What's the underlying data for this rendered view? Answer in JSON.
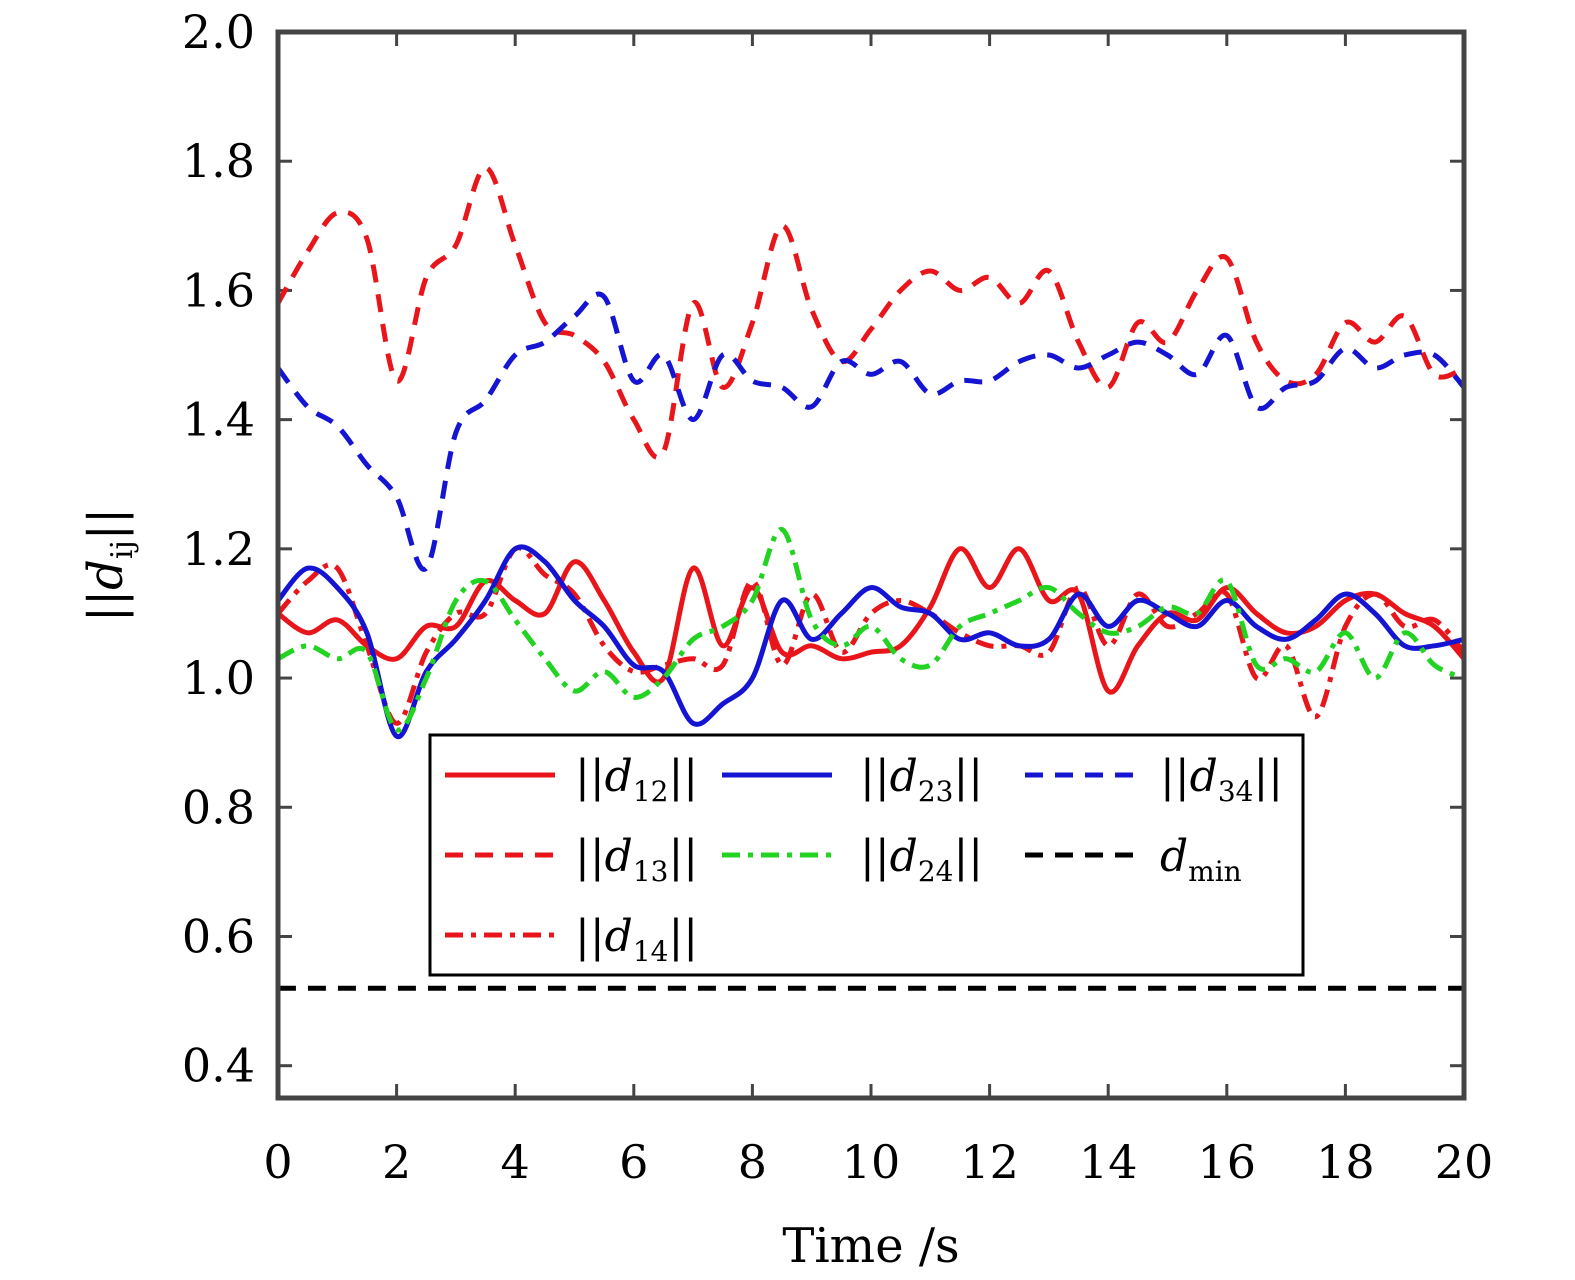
{
  "chart_data": {
    "type": "line",
    "xlabel": "Time /s",
    "ylabel": "||d_ij||",
    "xlim": [
      0,
      20
    ],
    "ylim": [
      0.35,
      2.0
    ],
    "xticks": [
      "0",
      "2",
      "4",
      "6",
      "8",
      "10",
      "12",
      "14",
      "16",
      "18",
      "20"
    ],
    "yticks": [
      "0.4",
      "0.6",
      "0.8",
      "1.0",
      "1.2",
      "1.4",
      "1.6",
      "1.8",
      "2.0"
    ],
    "legend_position": "lower-center",
    "series": [
      {
        "name": "||d12||",
        "label_main": "||d",
        "label_sub": "12",
        "label_tail": "||",
        "color": "#e8151b",
        "style": "solid",
        "x": [
          0,
          0.5,
          1,
          1.5,
          2,
          2.5,
          3,
          3.5,
          4,
          4.5,
          5,
          5.5,
          6,
          6.5,
          7,
          7.5,
          8,
          8.5,
          9,
          9.5,
          10,
          10.5,
          11,
          11.5,
          12,
          12.5,
          13,
          13.5,
          14,
          14.5,
          15,
          15.5,
          16,
          16.5,
          17,
          17.5,
          18,
          18.5,
          19,
          19.5,
          20
        ],
        "y": [
          1.1,
          1.07,
          1.09,
          1.05,
          1.03,
          1.08,
          1.08,
          1.15,
          1.12,
          1.1,
          1.18,
          1.12,
          1.04,
          1.0,
          1.17,
          1.05,
          1.14,
          1.04,
          1.05,
          1.03,
          1.04,
          1.05,
          1.11,
          1.2,
          1.14,
          1.2,
          1.12,
          1.13,
          0.98,
          1.05,
          1.1,
          1.09,
          1.14,
          1.1,
          1.07,
          1.08,
          1.12,
          1.13,
          1.1,
          1.08,
          1.03
        ]
      },
      {
        "name": "||d13||",
        "label_main": "||d",
        "label_sub": "13",
        "label_tail": "||",
        "color": "#e8151b",
        "style": "dashed",
        "x": [
          0,
          0.5,
          1,
          1.5,
          2,
          2.5,
          3,
          3.5,
          4,
          4.5,
          5,
          5.5,
          6,
          6.5,
          7,
          7.5,
          8,
          8.5,
          9,
          9.5,
          10,
          10.5,
          11,
          11.5,
          12,
          12.5,
          13,
          13.5,
          14,
          14.5,
          15,
          15.5,
          16,
          16.5,
          17,
          17.5,
          18,
          18.5,
          19,
          19.5,
          20
        ],
        "y": [
          1.58,
          1.66,
          1.72,
          1.68,
          1.46,
          1.62,
          1.67,
          1.79,
          1.67,
          1.55,
          1.53,
          1.49,
          1.4,
          1.35,
          1.58,
          1.45,
          1.55,
          1.7,
          1.57,
          1.49,
          1.54,
          1.6,
          1.63,
          1.6,
          1.62,
          1.58,
          1.63,
          1.52,
          1.45,
          1.55,
          1.52,
          1.6,
          1.65,
          1.52,
          1.46,
          1.47,
          1.55,
          1.52,
          1.56,
          1.47,
          1.48
        ]
      },
      {
        "name": "||d14||",
        "label_main": "||d",
        "label_sub": "14",
        "label_tail": "||",
        "color": "#e8151b",
        "style": "dashdot",
        "x": [
          0,
          0.5,
          1,
          1.5,
          2,
          2.5,
          3,
          3.5,
          4,
          4.5,
          5,
          5.5,
          6,
          6.5,
          7,
          7.5,
          8,
          8.5,
          9,
          9.5,
          10,
          10.5,
          11,
          11.5,
          12,
          12.5,
          13,
          13.5,
          14,
          14.5,
          15,
          15.5,
          16,
          16.5,
          17,
          17.5,
          18,
          18.5,
          19,
          19.5,
          20
        ],
        "y": [
          1.1,
          1.15,
          1.17,
          1.05,
          0.93,
          1.04,
          1.1,
          1.1,
          1.2,
          1.16,
          1.13,
          1.05,
          1.01,
          1.02,
          1.03,
          1.02,
          1.15,
          1.02,
          1.13,
          1.04,
          1.1,
          1.12,
          1.1,
          1.07,
          1.05,
          1.05,
          1.04,
          1.14,
          1.05,
          1.13,
          1.08,
          1.1,
          1.13,
          1.0,
          1.05,
          0.94,
          1.08,
          1.13,
          1.08,
          1.09,
          1.04
        ]
      },
      {
        "name": "||d23||",
        "label_main": "||d",
        "label_sub": "23",
        "label_tail": "||",
        "color": "#1414d2",
        "style": "solid",
        "x": [
          0,
          0.5,
          1,
          1.5,
          2,
          2.5,
          3,
          3.5,
          4,
          4.5,
          5,
          5.5,
          6,
          6.5,
          7,
          7.5,
          8,
          8.5,
          9,
          9.5,
          10,
          10.5,
          11,
          11.5,
          12,
          12.5,
          13,
          13.5,
          14,
          14.5,
          15,
          15.5,
          16,
          16.5,
          17,
          17.5,
          18,
          18.5,
          19,
          19.5,
          20
        ],
        "y": [
          1.12,
          1.17,
          1.14,
          1.07,
          0.91,
          1.01,
          1.06,
          1.12,
          1.2,
          1.18,
          1.12,
          1.08,
          1.02,
          1.01,
          0.93,
          0.96,
          1.0,
          1.12,
          1.06,
          1.1,
          1.14,
          1.11,
          1.1,
          1.06,
          1.07,
          1.05,
          1.06,
          1.13,
          1.08,
          1.12,
          1.1,
          1.08,
          1.12,
          1.08,
          1.06,
          1.09,
          1.13,
          1.1,
          1.05,
          1.05,
          1.06
        ]
      },
      {
        "name": "||d24||",
        "label_main": "||d",
        "label_sub": "24",
        "label_tail": "||",
        "color": "#22d322",
        "style": "dashdot",
        "x": [
          0,
          0.5,
          1,
          1.5,
          2,
          2.5,
          3,
          3.5,
          4,
          4.5,
          5,
          5.5,
          6,
          6.5,
          7,
          7.5,
          8,
          8.5,
          9,
          9.5,
          10,
          10.5,
          11,
          11.5,
          12,
          12.5,
          13,
          13.5,
          14,
          14.5,
          15,
          15.5,
          16,
          16.5,
          17,
          17.5,
          18,
          18.5,
          19,
          19.5,
          20
        ],
        "y": [
          1.03,
          1.05,
          1.03,
          1.04,
          0.92,
          1.0,
          1.12,
          1.15,
          1.09,
          1.03,
          0.98,
          1.01,
          0.97,
          1.0,
          1.06,
          1.08,
          1.12,
          1.23,
          1.09,
          1.05,
          1.08,
          1.03,
          1.02,
          1.08,
          1.1,
          1.12,
          1.14,
          1.1,
          1.07,
          1.08,
          1.11,
          1.1,
          1.15,
          1.02,
          1.03,
          1.01,
          1.07,
          1.0,
          1.07,
          1.02,
          1.0
        ]
      },
      {
        "name": "||d34||",
        "label_main": "||d",
        "label_sub": "34",
        "label_tail": "||",
        "color": "#1414d2",
        "style": "dashed",
        "x": [
          0,
          0.5,
          1,
          1.5,
          2,
          2.5,
          3,
          3.5,
          4,
          4.5,
          5,
          5.5,
          6,
          6.5,
          7,
          7.5,
          8,
          8.5,
          9,
          9.5,
          10,
          10.5,
          11,
          11.5,
          12,
          12.5,
          13,
          13.5,
          14,
          14.5,
          15,
          15.5,
          16,
          16.5,
          17,
          17.5,
          18,
          18.5,
          19,
          19.5,
          20
        ],
        "y": [
          1.48,
          1.42,
          1.39,
          1.33,
          1.28,
          1.17,
          1.38,
          1.43,
          1.5,
          1.52,
          1.56,
          1.59,
          1.46,
          1.5,
          1.4,
          1.5,
          1.46,
          1.45,
          1.42,
          1.49,
          1.47,
          1.49,
          1.44,
          1.46,
          1.46,
          1.49,
          1.5,
          1.48,
          1.5,
          1.52,
          1.5,
          1.47,
          1.53,
          1.42,
          1.45,
          1.46,
          1.51,
          1.48,
          1.5,
          1.5,
          1.45
        ]
      },
      {
        "name": "dmin",
        "label_main": "d",
        "label_sub": "min",
        "label_tail": "",
        "color": "#000000",
        "style": "dashed",
        "x": [
          0,
          20
        ],
        "y": [
          0.52,
          0.52
        ]
      }
    ]
  }
}
